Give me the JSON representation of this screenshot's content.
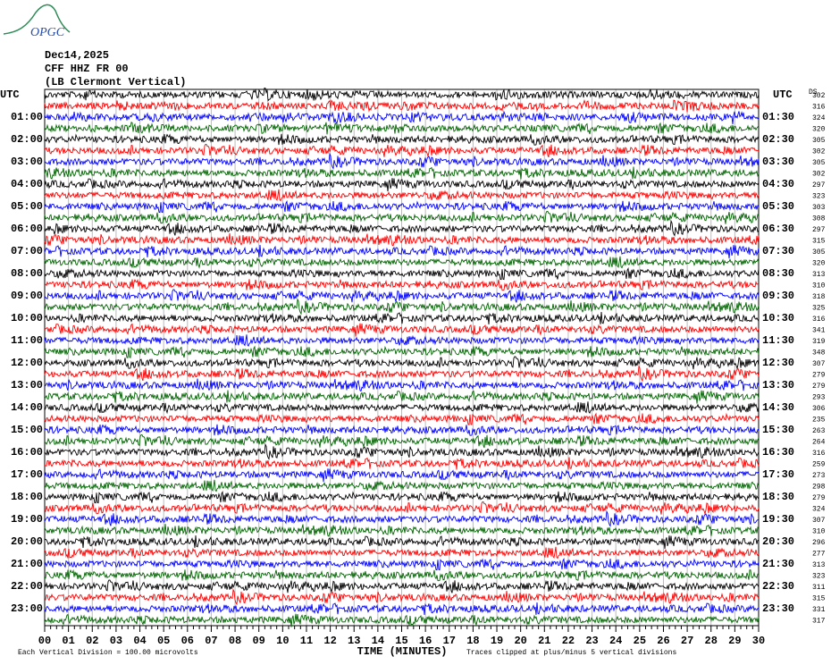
{
  "chart_data": {
    "type": "helicorder",
    "logo": "OPGC",
    "date": "Dec14,2025",
    "station": "CFF HHZ FR 00",
    "location": "(LB Clermont Vertical)",
    "left_title": "UTC",
    "right_title": "UTC",
    "ds_label": "DS",
    "left_labels": [
      "01:00",
      "02:00",
      "03:00",
      "04:00",
      "05:00",
      "06:00",
      "07:00",
      "08:00",
      "09:00",
      "10:00",
      "11:00",
      "12:00",
      "13:00",
      "14:00",
      "15:00",
      "16:00",
      "17:00",
      "18:00",
      "19:00",
      "20:00",
      "21:00",
      "22:00",
      "23:00"
    ],
    "right_labels": [
      "01:30",
      "02:30",
      "03:30",
      "04:30",
      "05:30",
      "06:30",
      "07:30",
      "08:30",
      "09:30",
      "10:30",
      "11:30",
      "12:30",
      "13:30",
      "14:30",
      "15:30",
      "16:30",
      "17:30",
      "18:30",
      "19:30",
      "20:30",
      "21:30",
      "22:30",
      "23:30"
    ],
    "ds_values": [
      302,
      316,
      324,
      320,
      305,
      302,
      305,
      302,
      297,
      323,
      303,
      308,
      297,
      315,
      305,
      320,
      313,
      310,
      318,
      325,
      316,
      341,
      319,
      348,
      307,
      279,
      279,
      293,
      306,
      235,
      263,
      264,
      316,
      259,
      273,
      298,
      279,
      324,
      307,
      310,
      296,
      277,
      313,
      323,
      311,
      315,
      331,
      317
    ],
    "trace_colors": [
      "#000000",
      "#ff0000",
      "#0000ff",
      "#006400"
    ],
    "xlim": [
      0,
      30
    ],
    "xticks": [
      {
        "value": 0,
        "label": "00"
      },
      {
        "value": 1,
        "label": "01"
      },
      {
        "value": 2,
        "label": "02"
      },
      {
        "value": 3,
        "label": "03"
      },
      {
        "value": 4,
        "label": "04"
      },
      {
        "value": 5,
        "label": "05"
      },
      {
        "value": 6,
        "label": "06"
      },
      {
        "value": 7,
        "label": "07"
      },
      {
        "value": 8,
        "label": "08"
      },
      {
        "value": 9,
        "label": "09"
      },
      10,
      11,
      12,
      13,
      14,
      15,
      16,
      17,
      18,
      19,
      20,
      21,
      22,
      23,
      24,
      25,
      26,
      27,
      28,
      29,
      30
    ],
    "xlabel": "TIME (MINUTES)",
    "grid": true,
    "note_left": "Each Vertical Division =  100.00 microvolts",
    "note_right": "Traces clipped at plus/minus 5 vertical divisions"
  }
}
